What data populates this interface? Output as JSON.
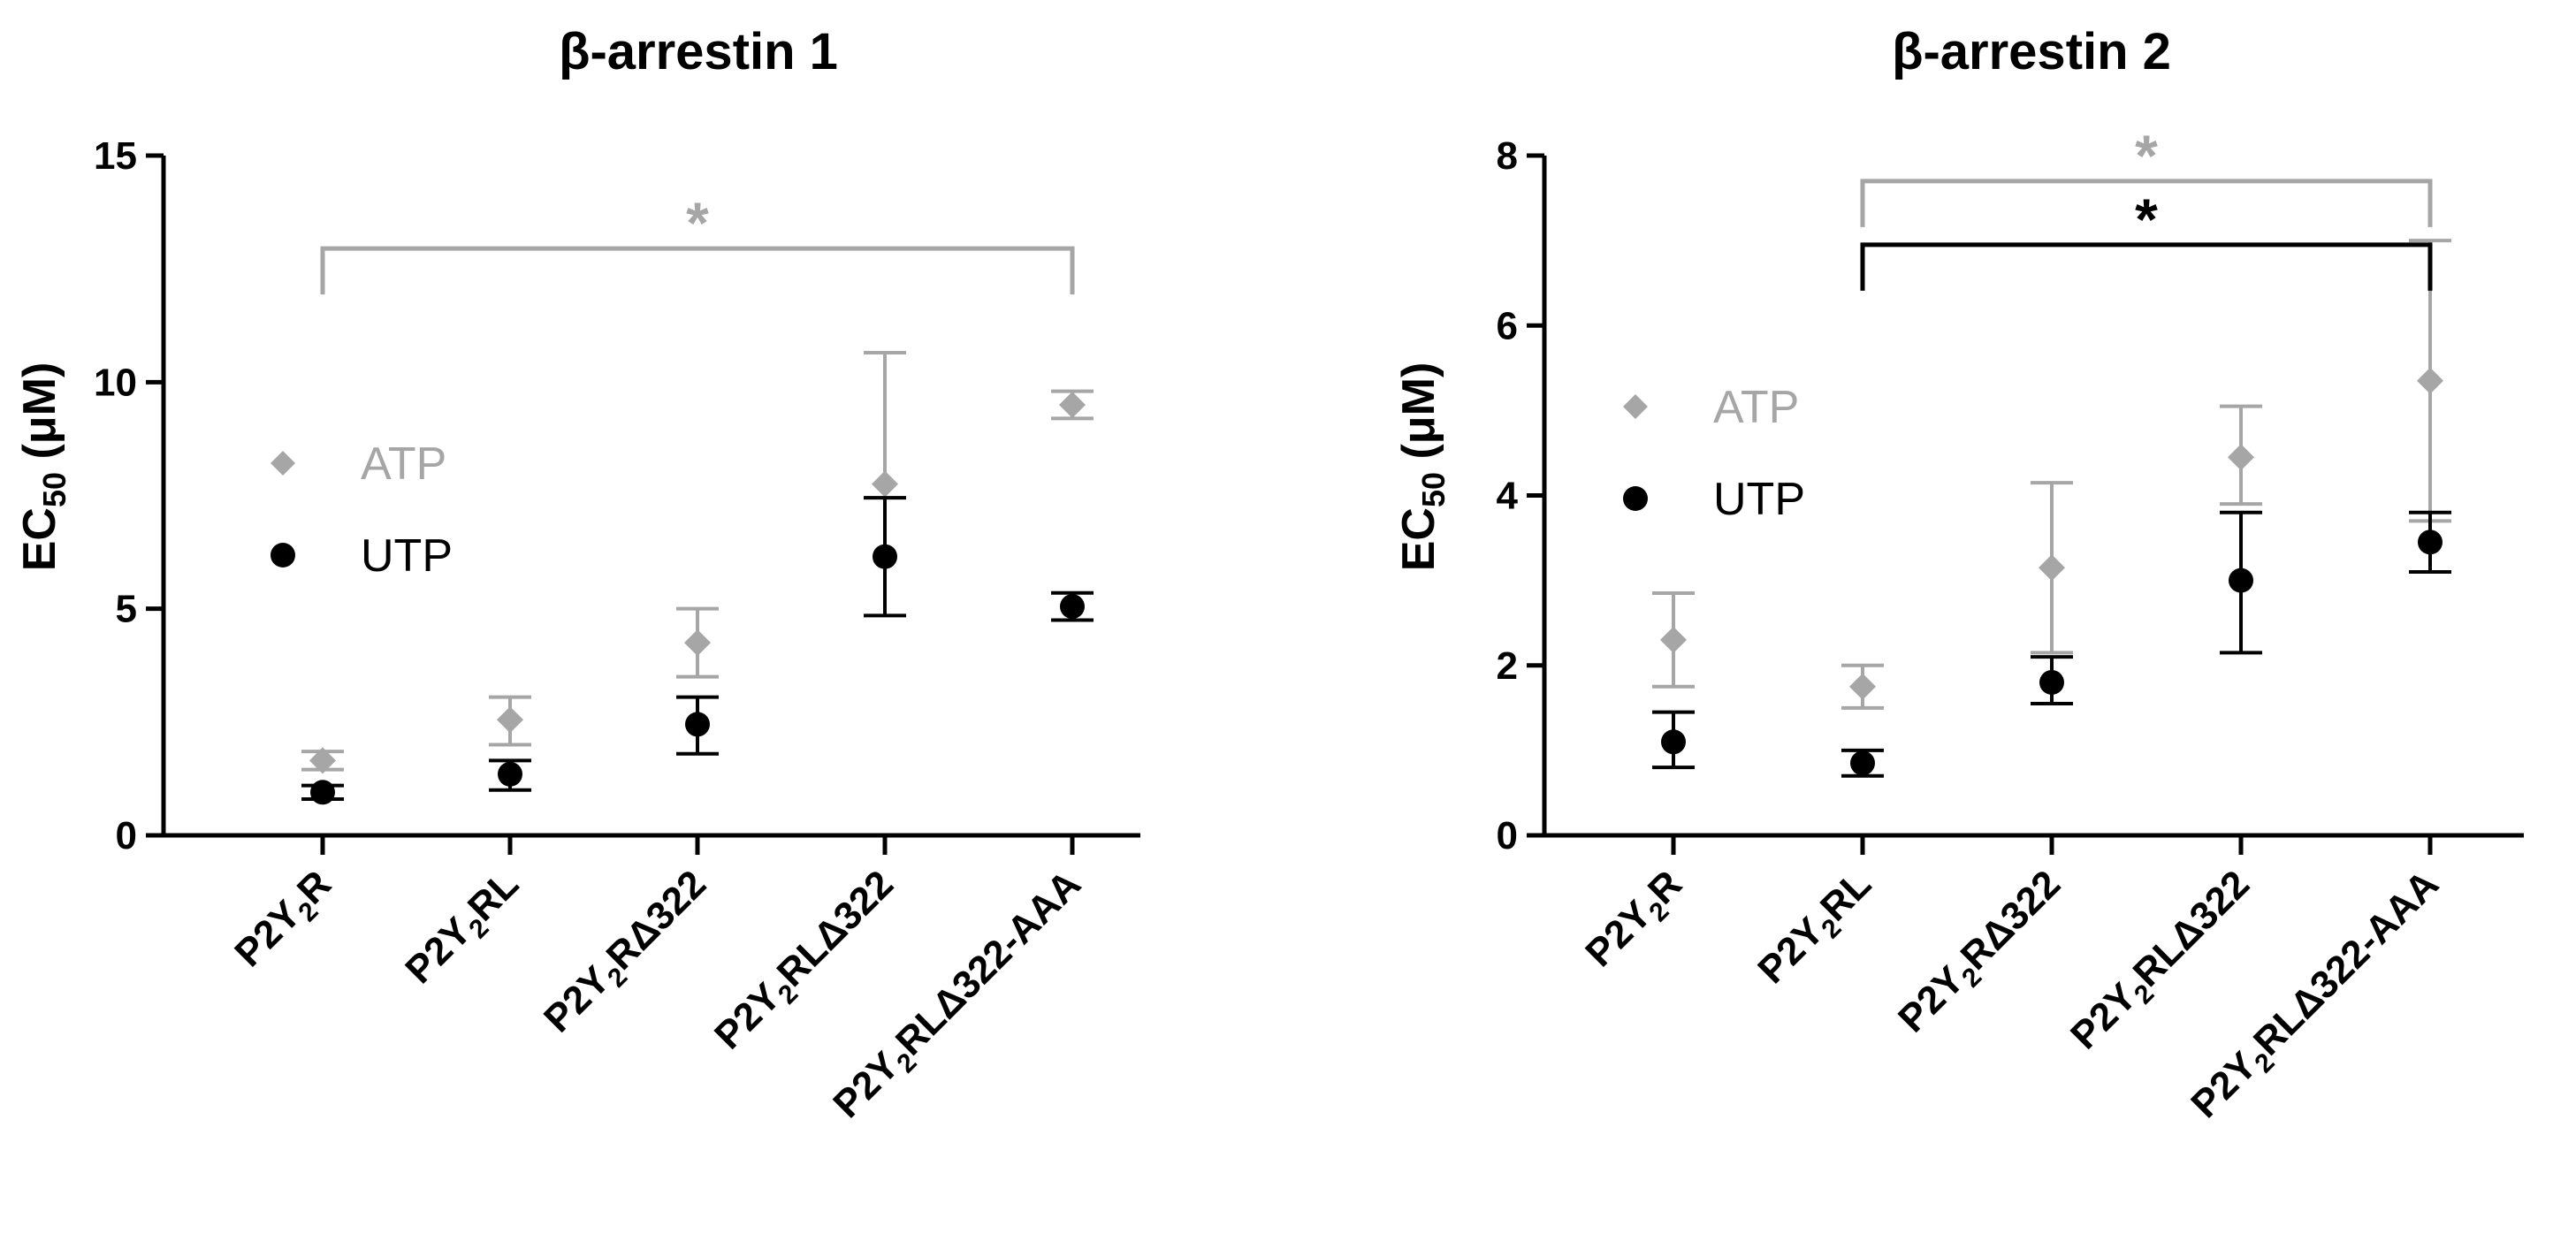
{
  "colors": {
    "atp": "#A6A6A6",
    "utp": "#000000",
    "axis": "#000000"
  },
  "chart_data": [
    {
      "type": "scatter",
      "title": "β-arrestin 1",
      "ylabel": {
        "main": "EC",
        "sub": "50",
        "unit": " (μM)"
      },
      "ylim": [
        0,
        15
      ],
      "yticks": [
        0,
        5,
        10,
        15
      ],
      "categories": [
        {
          "pre": "P2Y",
          "sub": "2",
          "post": "R"
        },
        {
          "pre": "P2Y",
          "sub": "2",
          "post": "RL"
        },
        {
          "pre": "P2Y",
          "sub": "2",
          "post": "RΔ322"
        },
        {
          "pre": "P2Y",
          "sub": "2",
          "post": "RLΔ322"
        },
        {
          "pre": "P2Y",
          "sub": "2",
          "post": "RLΔ322-AAA"
        }
      ],
      "legend": {
        "position": "left",
        "items": [
          {
            "label": "ATP",
            "series": "atp"
          },
          {
            "label": "UTP",
            "series": "utp"
          }
        ]
      },
      "series": [
        {
          "name": "ATP",
          "key": "atp",
          "marker": "diamond",
          "values": [
            1.65,
            2.55,
            4.25,
            7.75,
            9.5
          ],
          "err_low": [
            1.45,
            2.0,
            3.5,
            7.45,
            9.2
          ],
          "err_high": [
            1.85,
            3.05,
            5.0,
            10.65,
            9.8
          ]
        },
        {
          "name": "UTP",
          "key": "utp",
          "marker": "circle",
          "values": [
            0.95,
            1.35,
            2.45,
            6.15,
            5.05
          ],
          "err_low": [
            0.8,
            1.0,
            1.8,
            4.85,
            4.75
          ],
          "err_high": [
            1.1,
            1.65,
            3.05,
            7.45,
            5.35
          ]
        }
      ],
      "brackets": [
        {
          "from": 0,
          "to": 4,
          "y": 12.95,
          "color": "atp",
          "label": "*"
        }
      ]
    },
    {
      "type": "scatter",
      "title": "β-arrestin 2",
      "ylabel": {
        "main": "EC",
        "sub": "50",
        "unit": " (μM)"
      },
      "ylim": [
        0,
        8
      ],
      "yticks": [
        0,
        2,
        4,
        6,
        8
      ],
      "categories": [
        {
          "pre": "P2Y",
          "sub": "2",
          "post": "R"
        },
        {
          "pre": "P2Y",
          "sub": "2",
          "post": "RL"
        },
        {
          "pre": "P2Y",
          "sub": "2",
          "post": "RΔ322"
        },
        {
          "pre": "P2Y",
          "sub": "2",
          "post": "RLΔ322"
        },
        {
          "pre": "P2Y",
          "sub": "2",
          "post": "RLΔ322-AAA"
        }
      ],
      "legend": {
        "position": "left",
        "items": [
          {
            "label": "ATP",
            "series": "atp"
          },
          {
            "label": "UTP",
            "series": "utp"
          }
        ]
      },
      "series": [
        {
          "name": "ATP",
          "key": "atp",
          "marker": "diamond",
          "values": [
            2.3,
            1.75,
            3.15,
            4.45,
            5.35
          ],
          "err_low": [
            1.75,
            1.5,
            2.15,
            3.9,
            3.7
          ],
          "err_high": [
            2.85,
            2.0,
            4.15,
            5.05,
            7.0
          ]
        },
        {
          "name": "UTP",
          "key": "utp",
          "marker": "circle",
          "values": [
            1.1,
            0.85,
            1.8,
            3.0,
            3.45
          ],
          "err_low": [
            0.8,
            0.7,
            1.55,
            2.15,
            3.1
          ],
          "err_high": [
            1.45,
            1.0,
            2.1,
            3.8,
            3.8
          ]
        }
      ],
      "brackets": [
        {
          "from": 1,
          "to": 4,
          "y": 7.7,
          "color": "atp",
          "label": "*"
        },
        {
          "from": 1,
          "to": 4,
          "y": 6.95,
          "color": "utp",
          "label": "*"
        }
      ]
    }
  ]
}
